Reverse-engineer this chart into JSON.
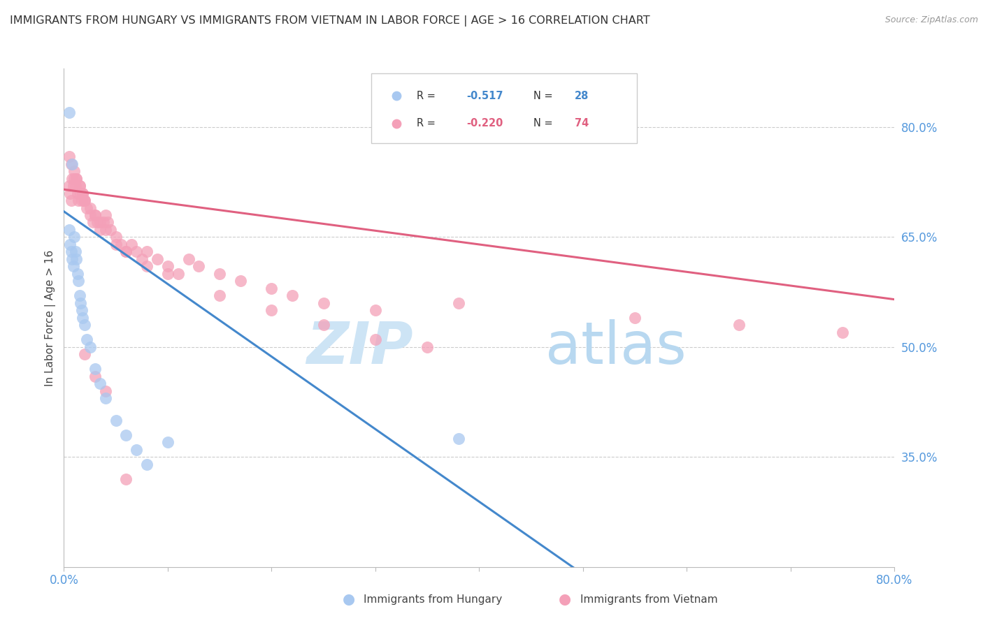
{
  "title": "IMMIGRANTS FROM HUNGARY VS IMMIGRANTS FROM VIETNAM IN LABOR FORCE | AGE > 16 CORRELATION CHART",
  "source": "Source: ZipAtlas.com",
  "ylabel_left": "In Labor Force | Age > 16",
  "y_tick_labels_right": [
    "80.0%",
    "65.0%",
    "50.0%",
    "35.0%"
  ],
  "y_tick_values_right": [
    0.8,
    0.65,
    0.5,
    0.35
  ],
  "xlim": [
    0.0,
    0.8
  ],
  "ylim": [
    0.2,
    0.88
  ],
  "hungary_color": "#a8c8f0",
  "vietnam_color": "#f4a0b8",
  "hungary_line_color": "#4488cc",
  "vietnam_line_color": "#e06080",
  "watermark_zip_color": "#c8dff0",
  "watermark_atlas_color": "#b0d4f0",
  "background_color": "#ffffff",
  "grid_color": "#cccccc",
  "axis_label_color": "#5599dd",
  "title_color": "#333333",
  "hungary_scatter_x": [
    0.005,
    0.006,
    0.007,
    0.008,
    0.009,
    0.01,
    0.011,
    0.012,
    0.013,
    0.014,
    0.015,
    0.016,
    0.017,
    0.018,
    0.02,
    0.022,
    0.025,
    0.03,
    0.035,
    0.04,
    0.05,
    0.06,
    0.07,
    0.08,
    0.1,
    0.38,
    0.005,
    0.008
  ],
  "hungary_scatter_y": [
    0.66,
    0.64,
    0.63,
    0.62,
    0.61,
    0.65,
    0.63,
    0.62,
    0.6,
    0.59,
    0.57,
    0.56,
    0.55,
    0.54,
    0.53,
    0.51,
    0.5,
    0.47,
    0.45,
    0.43,
    0.4,
    0.38,
    0.36,
    0.34,
    0.37,
    0.375,
    0.82,
    0.75
  ],
  "vietnam_scatter_x": [
    0.005,
    0.006,
    0.007,
    0.008,
    0.009,
    0.01,
    0.011,
    0.012,
    0.013,
    0.014,
    0.015,
    0.016,
    0.017,
    0.018,
    0.019,
    0.02,
    0.022,
    0.025,
    0.028,
    0.03,
    0.032,
    0.035,
    0.038,
    0.04,
    0.042,
    0.045,
    0.05,
    0.055,
    0.06,
    0.065,
    0.07,
    0.075,
    0.08,
    0.09,
    0.1,
    0.11,
    0.12,
    0.13,
    0.15,
    0.17,
    0.2,
    0.22,
    0.25,
    0.3,
    0.38,
    0.55,
    0.65,
    0.75,
    0.005,
    0.007,
    0.01,
    0.012,
    0.015,
    0.018,
    0.02,
    0.025,
    0.03,
    0.035,
    0.04,
    0.05,
    0.06,
    0.08,
    0.1,
    0.15,
    0.2,
    0.25,
    0.3,
    0.35,
    0.02,
    0.03,
    0.04,
    0.06
  ],
  "vietnam_scatter_y": [
    0.72,
    0.71,
    0.7,
    0.73,
    0.72,
    0.73,
    0.72,
    0.73,
    0.71,
    0.7,
    0.72,
    0.71,
    0.7,
    0.71,
    0.7,
    0.7,
    0.69,
    0.68,
    0.67,
    0.68,
    0.67,
    0.66,
    0.67,
    0.68,
    0.67,
    0.66,
    0.65,
    0.64,
    0.63,
    0.64,
    0.63,
    0.62,
    0.63,
    0.62,
    0.61,
    0.6,
    0.62,
    0.61,
    0.6,
    0.59,
    0.58,
    0.57,
    0.56,
    0.55,
    0.56,
    0.54,
    0.53,
    0.52,
    0.76,
    0.75,
    0.74,
    0.73,
    0.72,
    0.71,
    0.7,
    0.69,
    0.68,
    0.67,
    0.66,
    0.64,
    0.63,
    0.61,
    0.6,
    0.57,
    0.55,
    0.53,
    0.51,
    0.5,
    0.49,
    0.46,
    0.44,
    0.32
  ],
  "hungary_trend_x": [
    0.0,
    0.5
  ],
  "hungary_trend_y": [
    0.685,
    0.19
  ],
  "vietnam_trend_x": [
    0.0,
    0.8
  ],
  "vietnam_trend_y": [
    0.715,
    0.565
  ]
}
